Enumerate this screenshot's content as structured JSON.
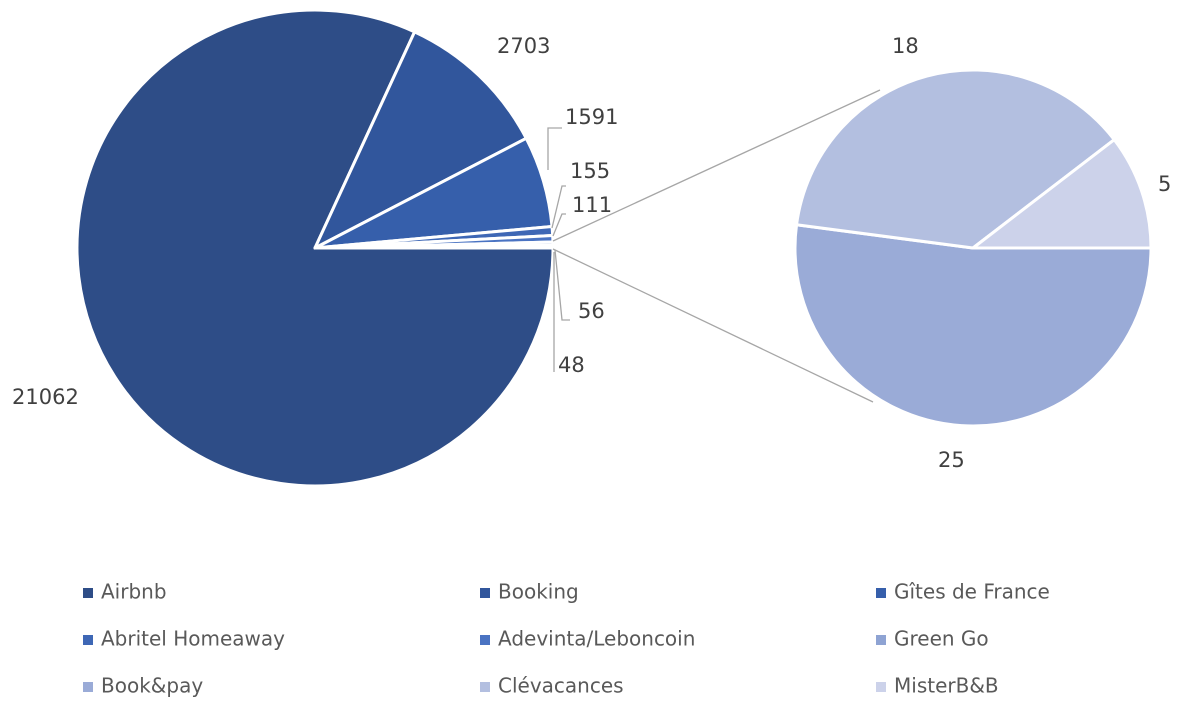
{
  "chart_data": {
    "type": "pie-of-pie",
    "categories": [
      "Airbnb",
      "Booking",
      "Gîtes de France",
      "Abritel Homeaway",
      "Adevinta/Leboncoin",
      "Green Go",
      "Book&pay",
      "Clévacances",
      "MisterB&B"
    ],
    "values": [
      21062,
      2703,
      1591,
      155,
      111,
      56,
      25,
      18,
      5
    ],
    "colors": [
      "#2e4d87",
      "#31569c",
      "#365fab",
      "#3e67b5",
      "#4a73c2",
      "#8ea3d3",
      "#9aabd7",
      "#b3bfe0",
      "#ccd2ea"
    ],
    "secondary_count": 3,
    "other_value": 48,
    "other_color": "#aab8df",
    "legend": "bottom"
  }
}
